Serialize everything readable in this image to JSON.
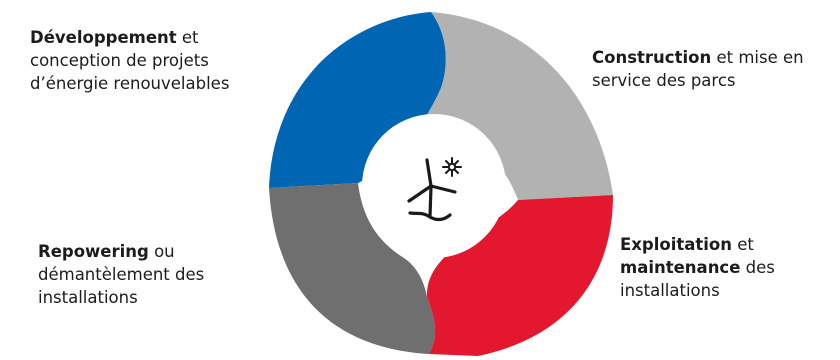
{
  "diagram": {
    "colors": {
      "development": "#0066b3",
      "construction": "#b2b2b2",
      "operation": "#e3182f",
      "repowering": "#6f6f6f",
      "hub": "#ffffff",
      "icon": "#1a1a1a"
    },
    "hub_icon": "wind-turbine-sun-icon",
    "stages": [
      {
        "id": "development",
        "label_lines": [
          {
            "bold": "Développement",
            "rest": " et"
          },
          {
            "bold": "",
            "rest": "conception de projets"
          },
          {
            "bold": "",
            "rest": "d’énergie renouvelables"
          }
        ]
      },
      {
        "id": "construction",
        "label_lines": [
          {
            "bold": "Construction",
            "rest": " et mise en"
          },
          {
            "bold": "",
            "rest": "service des parcs"
          }
        ]
      },
      {
        "id": "operation",
        "label_lines": [
          {
            "bold": "Exploitation",
            "rest": " et"
          },
          {
            "bold": "maintenance",
            "rest": " des"
          },
          {
            "bold": "",
            "rest": "installations"
          }
        ]
      },
      {
        "id": "repowering",
        "label_lines": [
          {
            "bold": "Repowering",
            "rest": " ou"
          },
          {
            "bold": "",
            "rest": "démantèlement des"
          },
          {
            "bold": "",
            "rest": "installations"
          }
        ]
      }
    ]
  }
}
